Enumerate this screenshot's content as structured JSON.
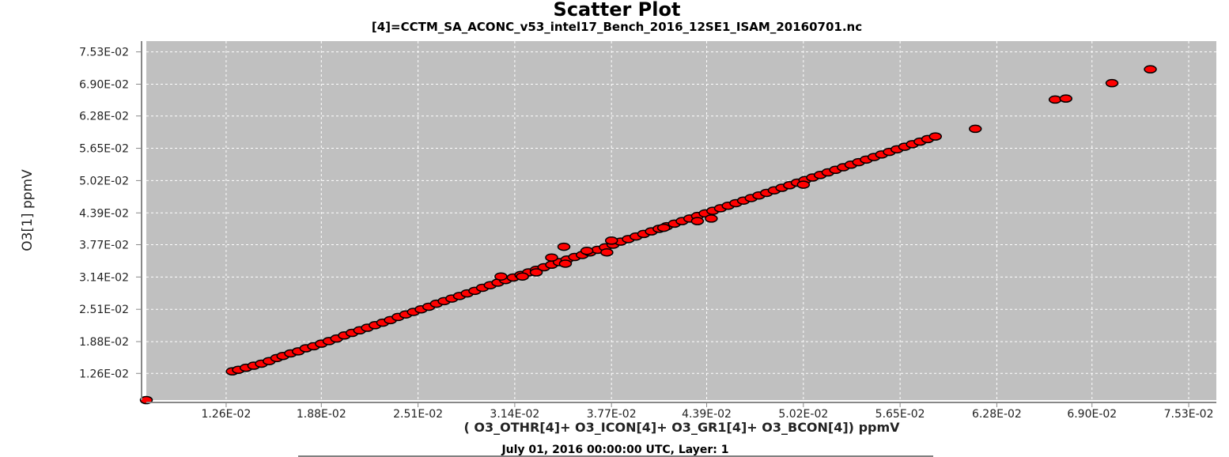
{
  "colors": {
    "plot_background": "#c0c0c0",
    "grid": "#ffffff",
    "marker_fill": "#ff0000",
    "marker_stroke": "#000000"
  },
  "chart_data": {
    "type": "scatter",
    "title": "Scatter Plot",
    "subtitle": "[4]=CCTM_SA_ACONC_v53_intel17_Bench_2016_12SE1_ISAM_20160701.nc",
    "xlabel": "( O3_OTHR[4]+ O3_ICON[4]+ O3_GR1[4]+ O3_BCON[4]) ppmV",
    "ylabel": "O3[1] ppmV",
    "footer": "July 01, 2016 00:00:00 UTC, Layer: 1",
    "grid": true,
    "xlim": [
      0.0074,
      0.0771
    ],
    "ylim": [
      0.0074,
      0.0774
    ],
    "x_ticks": [
      0.0126,
      0.0188,
      0.0251,
      0.0314,
      0.0377,
      0.0439,
      0.0502,
      0.0565,
      0.0628,
      0.069,
      0.0753
    ],
    "x_tick_labels": [
      "1.26E-02",
      "1.88E-02",
      "2.51E-02",
      "3.14E-02",
      "3.77E-02",
      "4.39E-02",
      "5.02E-02",
      "5.65E-02",
      "6.28E-02",
      "6.90E-02",
      "7.53E-02"
    ],
    "y_ticks": [
      0.0126,
      0.0188,
      0.0251,
      0.0314,
      0.0377,
      0.0439,
      0.0502,
      0.0565,
      0.0628,
      0.069,
      0.0753
    ],
    "y_tick_labels": [
      "1.26E-02",
      "1.88E-02",
      "2.51E-02",
      "3.14E-02",
      "3.77E-02",
      "4.39E-02",
      "5.02E-02",
      "5.65E-02",
      "6.28E-02",
      "6.90E-02",
      "7.53E-02"
    ],
    "points": [
      [
        0.0074,
        0.0074
      ],
      [
        0.013,
        0.013
      ],
      [
        0.0134,
        0.0133
      ],
      [
        0.0139,
        0.0137
      ],
      [
        0.0144,
        0.0141
      ],
      [
        0.0149,
        0.0145
      ],
      [
        0.0154,
        0.015
      ],
      [
        0.0159,
        0.0156
      ],
      [
        0.0163,
        0.016
      ],
      [
        0.0168,
        0.0165
      ],
      [
        0.0173,
        0.0169
      ],
      [
        0.0178,
        0.0175
      ],
      [
        0.0183,
        0.0179
      ],
      [
        0.0188,
        0.0184
      ],
      [
        0.0193,
        0.0189
      ],
      [
        0.0198,
        0.0194
      ],
      [
        0.0203,
        0.02
      ],
      [
        0.0208,
        0.0205
      ],
      [
        0.0213,
        0.021
      ],
      [
        0.0218,
        0.0215
      ],
      [
        0.0223,
        0.022
      ],
      [
        0.0228,
        0.0225
      ],
      [
        0.0233,
        0.023
      ],
      [
        0.0238,
        0.0236
      ],
      [
        0.0243,
        0.0241
      ],
      [
        0.0248,
        0.0246
      ],
      [
        0.0253,
        0.0251
      ],
      [
        0.0258,
        0.0256
      ],
      [
        0.0263,
        0.0262
      ],
      [
        0.0268,
        0.0267
      ],
      [
        0.0273,
        0.0272
      ],
      [
        0.0278,
        0.0277
      ],
      [
        0.0283,
        0.0282
      ],
      [
        0.0288,
        0.0287
      ],
      [
        0.0293,
        0.0293
      ],
      [
        0.0298,
        0.0298
      ],
      [
        0.0303,
        0.0303
      ],
      [
        0.0308,
        0.0308
      ],
      [
        0.0313,
        0.0313
      ],
      [
        0.0318,
        0.0318
      ],
      [
        0.0323,
        0.0323
      ],
      [
        0.0328,
        0.0328
      ],
      [
        0.0333,
        0.0333
      ],
      [
        0.0338,
        0.0338
      ],
      [
        0.0343,
        0.0343
      ],
      [
        0.0348,
        0.0348
      ],
      [
        0.0353,
        0.0353
      ],
      [
        0.0358,
        0.0357
      ],
      [
        0.0363,
        0.0362
      ],
      [
        0.0368,
        0.0367
      ],
      [
        0.0373,
        0.0372
      ],
      [
        0.0378,
        0.0377
      ],
      [
        0.0383,
        0.0383
      ],
      [
        0.0388,
        0.0388
      ],
      [
        0.0393,
        0.0393
      ],
      [
        0.0398,
        0.0398
      ],
      [
        0.0403,
        0.0403
      ],
      [
        0.0408,
        0.0408
      ],
      [
        0.0413,
        0.0413
      ],
      [
        0.0418,
        0.0418
      ],
      [
        0.0423,
        0.0423
      ],
      [
        0.0428,
        0.0428
      ],
      [
        0.0433,
        0.0433
      ],
      [
        0.0438,
        0.0438
      ],
      [
        0.0443,
        0.0443
      ],
      [
        0.0448,
        0.0448
      ],
      [
        0.0453,
        0.0453
      ],
      [
        0.0458,
        0.0458
      ],
      [
        0.0463,
        0.0463
      ],
      [
        0.0468,
        0.0468
      ],
      [
        0.0473,
        0.0473
      ],
      [
        0.0478,
        0.0478
      ],
      [
        0.0483,
        0.0483
      ],
      [
        0.0488,
        0.0488
      ],
      [
        0.0493,
        0.0493
      ],
      [
        0.0498,
        0.0498
      ],
      [
        0.0503,
        0.0503
      ],
      [
        0.0508,
        0.0508
      ],
      [
        0.0513,
        0.0513
      ],
      [
        0.0518,
        0.0518
      ],
      [
        0.0523,
        0.0523
      ],
      [
        0.0528,
        0.0528
      ],
      [
        0.0533,
        0.0533
      ],
      [
        0.0538,
        0.0538
      ],
      [
        0.0543,
        0.0543
      ],
      [
        0.0548,
        0.0548
      ],
      [
        0.0553,
        0.0553
      ],
      [
        0.0558,
        0.0558
      ],
      [
        0.0563,
        0.0563
      ],
      [
        0.0568,
        0.0568
      ],
      [
        0.0573,
        0.0573
      ],
      [
        0.0578,
        0.0578
      ],
      [
        0.0583,
        0.0583
      ],
      [
        0.0588,
        0.0588
      ],
      [
        0.0305,
        0.0315
      ],
      [
        0.0319,
        0.0315
      ],
      [
        0.0328,
        0.0323
      ],
      [
        0.0338,
        0.0352
      ],
      [
        0.0346,
        0.0373
      ],
      [
        0.0347,
        0.034
      ],
      [
        0.0361,
        0.0365
      ],
      [
        0.0374,
        0.0362
      ],
      [
        0.0377,
        0.0385
      ],
      [
        0.0411,
        0.041
      ],
      [
        0.0433,
        0.0423
      ],
      [
        0.0442,
        0.0428
      ],
      [
        0.0502,
        0.0494
      ],
      [
        0.0614,
        0.0603
      ],
      [
        0.0666,
        0.066
      ],
      [
        0.0673,
        0.0662
      ],
      [
        0.0703,
        0.0692
      ],
      [
        0.0728,
        0.0719
      ]
    ]
  }
}
